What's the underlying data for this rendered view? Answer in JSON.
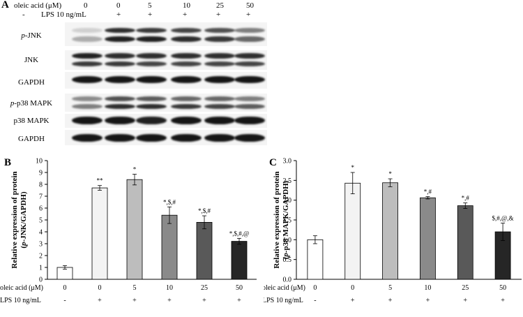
{
  "panels": {
    "A": "A",
    "B": "B",
    "C": "C"
  },
  "blot": {
    "oleic_label": "oleic acid (μM)",
    "lps_label": "LPS 10 ng/mL",
    "oleic_values": [
      "0",
      "0",
      "5",
      "10",
      "25",
      "50"
    ],
    "lps_values": [
      "-",
      "+",
      "+",
      "+",
      "+",
      "+"
    ],
    "rows": [
      {
        "label": "p-JNK",
        "italic_prefix": "p",
        "rest": "-JNK"
      },
      {
        "label": "JNK",
        "italic_prefix": "",
        "rest": "JNK"
      },
      {
        "label": "GAPDH",
        "italic_prefix": "",
        "rest": "GAPDH"
      },
      {
        "label": "p-p38 MAPK",
        "italic_prefix": "p",
        "rest": "-p38 MAPK"
      },
      {
        "label": "p38 MAPK",
        "italic_prefix": "",
        "rest": "p38 MAPK"
      },
      {
        "label": "GAPDH",
        "italic_prefix": "",
        "rest": "GAPDH"
      }
    ]
  },
  "chart_data": [
    {
      "type": "bar",
      "panel": "B",
      "ylabel_line1": "Relative expression of protein",
      "ylabel_line2_italic": "p",
      "ylabel_line2_rest": "-JNK/GAPDH)",
      "ylabel_line2_open": "(",
      "ylim": [
        0,
        10
      ],
      "yticks": [
        "0",
        "1",
        "2",
        "3",
        "4",
        "5",
        "6",
        "7",
        "8",
        "9",
        "10"
      ],
      "categories_oleic": [
        "0",
        "0",
        "5",
        "10",
        "25",
        "50"
      ],
      "categories_lps": [
        "-",
        "+",
        "+",
        "+",
        "+",
        "+"
      ],
      "xlabel_oleic": "oleic acid (μM)",
      "xlabel_lps": "LPS 10 ng/mL",
      "values": [
        1.0,
        7.7,
        8.4,
        5.4,
        4.8,
        3.2
      ],
      "errors": [
        0.15,
        0.2,
        0.45,
        0.7,
        0.55,
        0.25
      ],
      "annotations": [
        "",
        "**",
        "*",
        "*,$,#",
        "*,$,#",
        "*,$,#,@"
      ],
      "colors": [
        "#ffffff",
        "#f3f3f3",
        "#bdbdbd",
        "#8a8a8a",
        "#595959",
        "#262626"
      ]
    },
    {
      "type": "bar",
      "panel": "C",
      "ylabel_line1": "Relative expression of protein",
      "ylabel_line2_italic": "p",
      "ylabel_line2_rest": "-p38 MAPK/GAPDH)",
      "ylabel_line2_open": "(",
      "ylim": [
        0,
        3.0
      ],
      "yticks": [
        "0.0",
        "0.5",
        "1.0",
        "1.5",
        "2.0",
        "2.5",
        "3.0"
      ],
      "categories_oleic": [
        "0",
        "0",
        "5",
        "10",
        "25",
        "50"
      ],
      "categories_lps": [
        "-",
        "+",
        "+",
        "+",
        "+",
        "+"
      ],
      "xlabel_oleic": "oleic acid (μM)",
      "xlabel_lps": "LPS 10 ng/mL",
      "values": [
        1.0,
        2.43,
        2.44,
        2.06,
        1.86,
        1.2
      ],
      "errors": [
        0.1,
        0.27,
        0.1,
        0.03,
        0.07,
        0.22
      ],
      "annotations": [
        "",
        "*",
        "*",
        "*,#",
        "*,#",
        "$,#,@,&"
      ],
      "colors": [
        "#ffffff",
        "#f3f3f3",
        "#bdbdbd",
        "#8a8a8a",
        "#595959",
        "#262626"
      ]
    }
  ]
}
